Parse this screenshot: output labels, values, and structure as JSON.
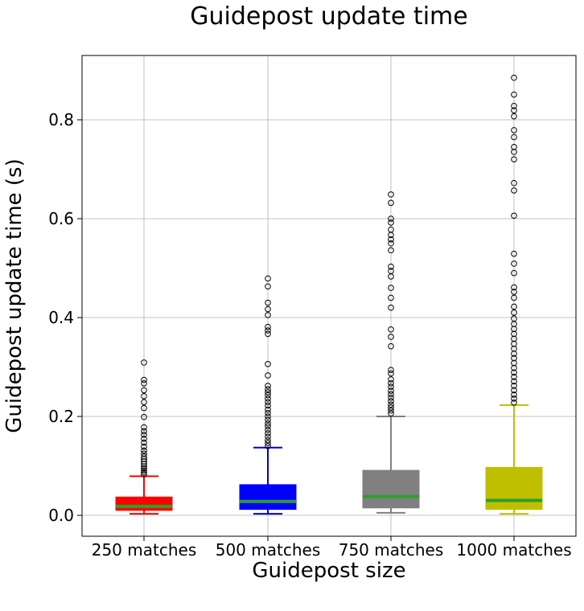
{
  "chart_data": {
    "type": "boxplot",
    "title": "Guidepost update time",
    "xlabel": "Guidepost size",
    "ylabel": "Guidepost update time (s)",
    "ylim": [
      -0.04,
      0.93
    ],
    "yticks": [
      0.0,
      0.2,
      0.4,
      0.6,
      0.8
    ],
    "ytick_labels": [
      "0.0",
      "0.2",
      "0.4",
      "0.6",
      "0.8"
    ],
    "grid": true,
    "median_color": "#2ca02c",
    "series": [
      {
        "category": "250 matches",
        "color": "#ff0000",
        "whisker_color": "#ff0000",
        "min": 0.003,
        "q1": 0.01,
        "median": 0.018,
        "q3": 0.037,
        "max": 0.079,
        "outliers": [
          0.309,
          0.274,
          0.267,
          0.253,
          0.241,
          0.229,
          0.217,
          0.199,
          0.178,
          0.17,
          0.163,
          0.155,
          0.147,
          0.139,
          0.131,
          0.125,
          0.119,
          0.114,
          0.109,
          0.104,
          0.099,
          0.095,
          0.091,
          0.087,
          0.083
        ]
      },
      {
        "category": "500 matches",
        "color": "#0000ff",
        "whisker_color": "#0000cc",
        "min": 0.003,
        "q1": 0.012,
        "median": 0.028,
        "q3": 0.062,
        "max": 0.137,
        "outliers": [
          0.479,
          0.463,
          0.43,
          0.417,
          0.405,
          0.381,
          0.374,
          0.367,
          0.306,
          0.283,
          0.262,
          0.255,
          0.249,
          0.243,
          0.236,
          0.229,
          0.222,
          0.214,
          0.207,
          0.2,
          0.193,
          0.186,
          0.18,
          0.173,
          0.166,
          0.159,
          0.152,
          0.146,
          0.14
        ]
      },
      {
        "category": "750 matches",
        "color": "#808080",
        "whisker_color": "#808080",
        "min": 0.005,
        "q1": 0.015,
        "median": 0.038,
        "q3": 0.091,
        "max": 0.2,
        "outliers": [
          0.649,
          0.632,
          0.6,
          0.592,
          0.578,
          0.567,
          0.558,
          0.55,
          0.536,
          0.503,
          0.494,
          0.483,
          0.46,
          0.44,
          0.42,
          0.376,
          0.361,
          0.342,
          0.294,
          0.287,
          0.275,
          0.267,
          0.26,
          0.252,
          0.245,
          0.238,
          0.231,
          0.224,
          0.218,
          0.212,
          0.206
        ]
      },
      {
        "category": "1000 matches",
        "color": "#bfbf00",
        "whisker_color": "#bfbf00",
        "min": 0.003,
        "q1": 0.012,
        "median": 0.03,
        "q3": 0.097,
        "max": 0.223,
        "outliers": [
          0.885,
          0.851,
          0.828,
          0.819,
          0.807,
          0.779,
          0.765,
          0.745,
          0.735,
          0.72,
          0.672,
          0.657,
          0.606,
          0.529,
          0.509,
          0.49,
          0.461,
          0.452,
          0.44,
          0.422,
          0.41,
          0.398,
          0.387,
          0.377,
          0.367,
          0.357,
          0.347,
          0.337,
          0.327,
          0.318,
          0.308,
          0.298,
          0.289,
          0.28,
          0.271,
          0.262,
          0.253,
          0.244,
          0.236,
          0.228
        ]
      }
    ]
  }
}
